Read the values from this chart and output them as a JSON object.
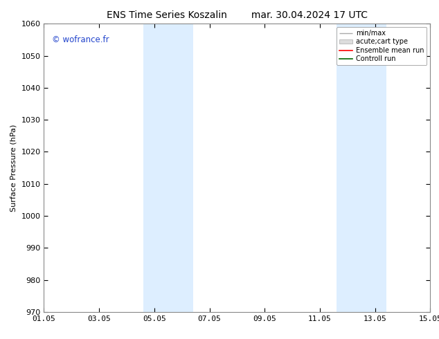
{
  "title": "ENS Time Series Koszalin        mar. 30.04.2024 17 UTC",
  "ylabel": "Surface Pressure (hPa)",
  "ylim": [
    970,
    1060
  ],
  "yticks": [
    970,
    980,
    990,
    1000,
    1010,
    1020,
    1030,
    1040,
    1050,
    1060
  ],
  "xlim": [
    0,
    14
  ],
  "xtick_positions": [
    0,
    2,
    4,
    6,
    8,
    10,
    12,
    14
  ],
  "xtick_labels": [
    "01.05",
    "03.05",
    "05.05",
    "07.05",
    "09.05",
    "11.05",
    "13.05",
    "15.05"
  ],
  "shaded_bands": [
    {
      "x_start": 3.6,
      "x_end": 5.4,
      "color": "#ddeeff"
    },
    {
      "x_start": 10.6,
      "x_end": 12.4,
      "color": "#ddeeff"
    }
  ],
  "watermark_text": "© wofrance.fr",
  "watermark_color": "#2244cc",
  "bg_color": "#ffffff",
  "spine_color": "#888888",
  "tick_fontsize": 8,
  "axis_label_fontsize": 8,
  "title_fontsize": 10
}
